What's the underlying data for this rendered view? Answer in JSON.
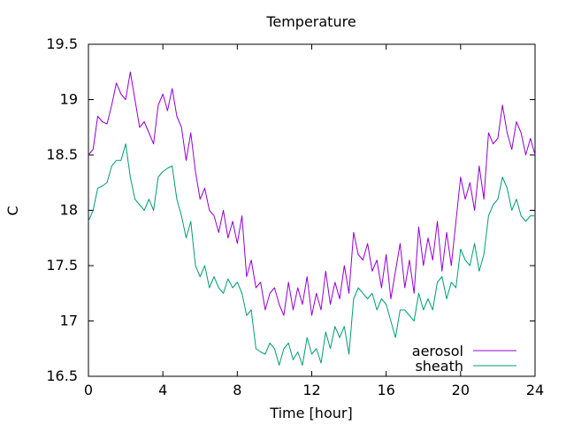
{
  "chart_data": {
    "type": "line",
    "title": "Temperature",
    "xlabel": "Time [hour]",
    "ylabel": "C",
    "xlim": [
      0,
      24
    ],
    "ylim": [
      16.5,
      19.5
    ],
    "x_ticks": [
      0,
      4,
      8,
      12,
      16,
      20,
      24
    ],
    "x_tick_labels": [
      "0",
      "4",
      "8",
      "12",
      "16",
      "20",
      "24"
    ],
    "y_ticks": [
      16.5,
      17,
      17.5,
      18,
      18.5,
      19,
      19.5
    ],
    "y_tick_labels": [
      "16.5",
      "17",
      "17.5",
      "18",
      "18.5",
      "19",
      "19.5"
    ],
    "grid": false,
    "legend_position": "bottom-right",
    "x": [
      0,
      0.25,
      0.5,
      0.75,
      1,
      1.25,
      1.5,
      1.75,
      2,
      2.25,
      2.5,
      2.75,
      3,
      3.25,
      3.5,
      3.75,
      4,
      4.25,
      4.5,
      4.75,
      5,
      5.25,
      5.5,
      5.75,
      6,
      6.25,
      6.5,
      6.75,
      7,
      7.25,
      7.5,
      7.75,
      8,
      8.25,
      8.5,
      8.75,
      9,
      9.25,
      9.5,
      9.75,
      10,
      10.25,
      10.5,
      10.75,
      11,
      11.25,
      11.5,
      11.75,
      12,
      12.25,
      12.5,
      12.75,
      13,
      13.25,
      13.5,
      13.75,
      14,
      14.25,
      14.5,
      14.75,
      15,
      15.25,
      15.5,
      15.75,
      16,
      16.25,
      16.5,
      16.75,
      17,
      17.25,
      17.5,
      17.75,
      18,
      18.25,
      18.5,
      18.75,
      19,
      19.25,
      19.5,
      19.75,
      20,
      20.25,
      20.5,
      20.75,
      21,
      21.25,
      21.5,
      21.75,
      22,
      22.25,
      22.5,
      22.75,
      23,
      23.25,
      23.5,
      23.75,
      24
    ],
    "series": [
      {
        "name": "aerosol",
        "color": "#9400d3",
        "values": [
          18.5,
          18.55,
          18.85,
          18.8,
          18.78,
          18.95,
          19.15,
          19.05,
          19.0,
          19.25,
          19.0,
          18.75,
          18.8,
          18.7,
          18.6,
          18.95,
          19.05,
          18.9,
          19.1,
          18.85,
          18.75,
          18.45,
          18.7,
          18.35,
          18.1,
          18.2,
          18.0,
          17.95,
          17.8,
          18.0,
          17.75,
          17.9,
          17.7,
          17.95,
          17.4,
          17.55,
          17.3,
          17.35,
          17.1,
          17.25,
          17.3,
          17.15,
          17.05,
          17.35,
          17.1,
          17.3,
          17.15,
          17.4,
          17.05,
          17.25,
          17.1,
          17.45,
          17.15,
          17.35,
          17.2,
          17.5,
          17.25,
          17.8,
          17.6,
          17.55,
          17.7,
          17.45,
          17.55,
          17.3,
          17.6,
          17.2,
          17.45,
          17.7,
          17.3,
          17.55,
          17.25,
          17.85,
          17.5,
          17.75,
          17.55,
          17.9,
          17.45,
          17.8,
          17.5,
          17.9,
          18.3,
          18.1,
          18.25,
          18.0,
          18.4,
          18.1,
          18.7,
          18.6,
          18.65,
          18.95,
          18.7,
          18.55,
          18.8,
          18.7,
          18.5,
          18.65,
          18.5
        ]
      },
      {
        "name": "sheath",
        "color": "#009e73",
        "values": [
          17.9,
          18.0,
          18.2,
          18.22,
          18.25,
          18.4,
          18.45,
          18.45,
          18.6,
          18.3,
          18.1,
          18.05,
          18.0,
          18.1,
          18.0,
          18.3,
          18.35,
          18.38,
          18.4,
          18.1,
          17.95,
          17.75,
          17.9,
          17.5,
          17.4,
          17.5,
          17.3,
          17.4,
          17.3,
          17.25,
          17.38,
          17.3,
          17.35,
          17.25,
          17.05,
          17.1,
          16.75,
          16.72,
          16.7,
          16.8,
          16.75,
          16.6,
          16.75,
          16.8,
          16.65,
          16.72,
          16.6,
          16.85,
          16.7,
          16.75,
          16.62,
          16.9,
          16.75,
          16.95,
          16.85,
          16.95,
          16.7,
          17.2,
          17.3,
          17.25,
          17.2,
          17.25,
          17.1,
          17.2,
          17.15,
          17.0,
          16.85,
          17.1,
          17.1,
          17.05,
          17.0,
          17.25,
          17.1,
          17.2,
          17.1,
          17.35,
          17.4,
          17.2,
          17.35,
          17.3,
          17.65,
          17.55,
          17.5,
          17.7,
          17.45,
          17.6,
          17.95,
          18.05,
          18.1,
          18.3,
          18.2,
          18.0,
          18.1,
          17.95,
          17.9,
          17.95,
          17.95
        ]
      }
    ]
  }
}
